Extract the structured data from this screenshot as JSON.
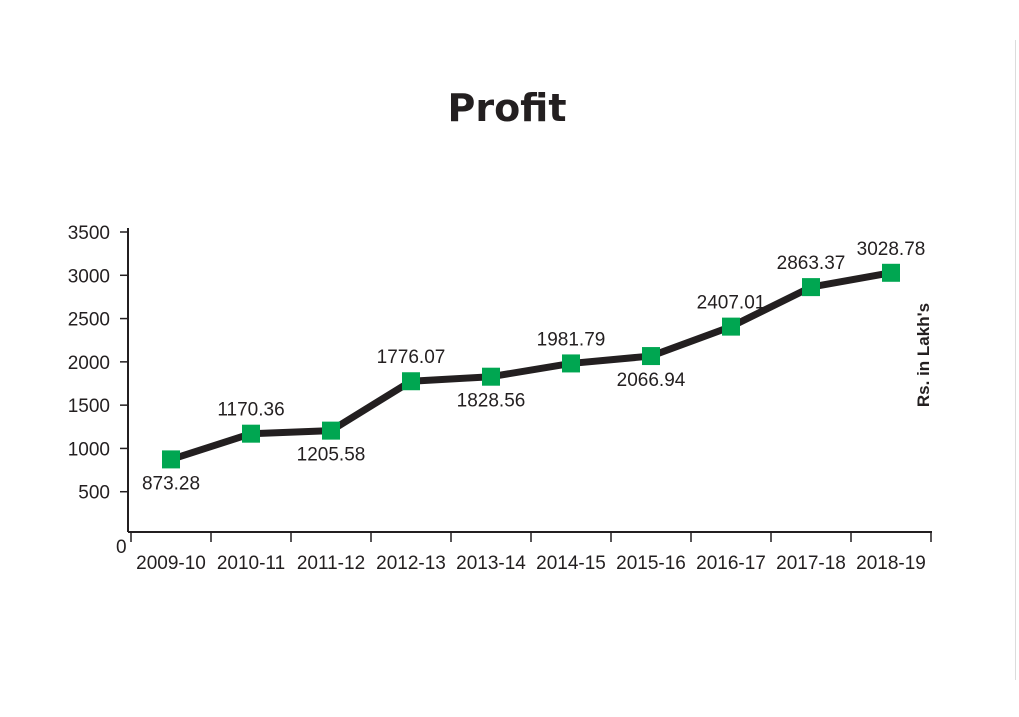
{
  "chart_data": {
    "type": "line",
    "title": "Profit",
    "ylabel": "Rs. in Lakh's",
    "xlabel": "",
    "categories": [
      "2009-10",
      "2010-11",
      "2011-12",
      "2012-13",
      "2013-14",
      "2014-15",
      "2015-16",
      "2016-17",
      "2017-18",
      "2018-19"
    ],
    "series": [
      {
        "values": [
          873.28,
          1170.36,
          1205.58,
          1776.07,
          1828.56,
          1981.79,
          2066.94,
          2407.01,
          2863.37,
          3028.78
        ],
        "data_labels": [
          "873.28",
          "1170.36",
          "1205.58",
          "1776.07",
          "1828.56",
          "1981.79",
          "2066.94",
          "2407.01",
          "2863.37",
          "3028.78"
        ]
      }
    ],
    "ylim": [
      0,
      3500
    ],
    "yticks": [
      500,
      1000,
      1500,
      2000,
      2500,
      3000,
      3500
    ],
    "y_zero_label": "0",
    "grid": false,
    "colors": {
      "line": "#231f20",
      "marker": "#00a651",
      "axis": "#231f20"
    }
  }
}
